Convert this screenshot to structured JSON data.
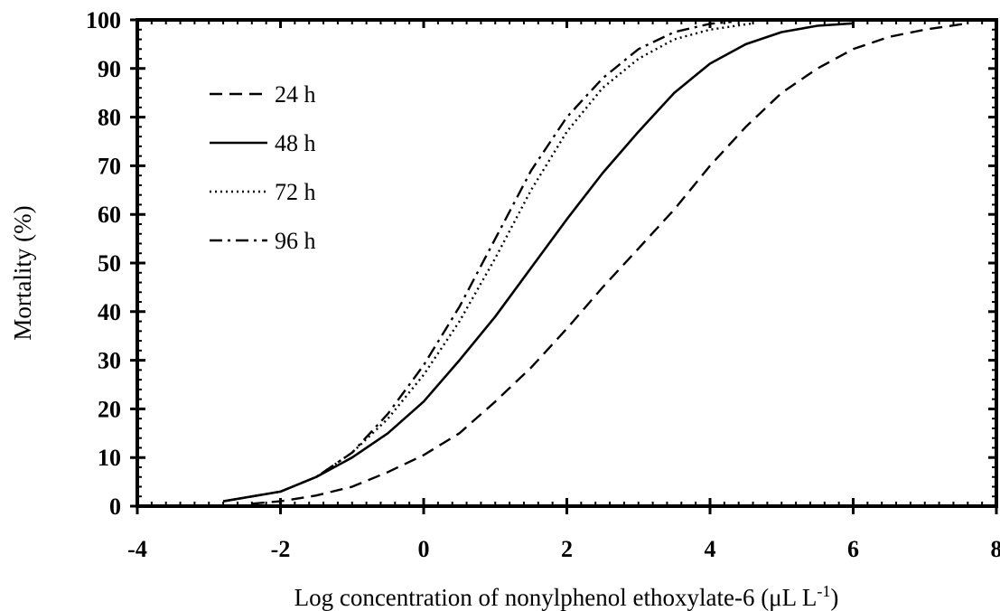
{
  "chart_data": {
    "type": "line",
    "title": "",
    "xlabel": "Log concentration of nonylphenol ethoxylate-6 (μL L",
    "xlabel_superscript": "-1",
    "xlabel_suffix": ")",
    "ylabel": "Mortality (%)",
    "xlim": [
      -4,
      8
    ],
    "ylim": [
      0,
      100
    ],
    "x_ticks": [
      "-4",
      "-2",
      "0",
      "2",
      "4",
      "6",
      "8"
    ],
    "y_ticks": [
      "0",
      "10",
      "20",
      "30",
      "40",
      "50",
      "60",
      "70",
      "80",
      "90",
      "100"
    ],
    "grid": false,
    "legend_position": "top-left",
    "series": [
      {
        "name": "24 h",
        "dash": "dashed",
        "color": "#000000",
        "points": [
          [
            -2.4,
            0.5
          ],
          [
            -2,
            1
          ],
          [
            -1.5,
            2.2
          ],
          [
            -1,
            4
          ],
          [
            -0.5,
            7
          ],
          [
            0,
            10.5
          ],
          [
            0.5,
            15
          ],
          [
            1,
            21.5
          ],
          [
            1.5,
            28.5
          ],
          [
            2,
            36.5
          ],
          [
            2.5,
            45
          ],
          [
            3,
            53
          ],
          [
            3.5,
            61
          ],
          [
            4,
            70
          ],
          [
            4.5,
            78
          ],
          [
            5,
            85
          ],
          [
            5.5,
            90
          ],
          [
            6,
            94
          ],
          [
            6.5,
            96.5
          ],
          [
            7,
            98
          ],
          [
            7.6,
            99.3
          ]
        ]
      },
      {
        "name": "48 h",
        "dash": "solid",
        "color": "#000000",
        "points": [
          [
            -2.8,
            1
          ],
          [
            -2,
            3
          ],
          [
            -1.5,
            6
          ],
          [
            -1,
            10
          ],
          [
            -0.5,
            15
          ],
          [
            0,
            21.5
          ],
          [
            0.5,
            30
          ],
          [
            1,
            39
          ],
          [
            1.5,
            49
          ],
          [
            2,
            59
          ],
          [
            2.5,
            68.5
          ],
          [
            3,
            77
          ],
          [
            3.5,
            85
          ],
          [
            4,
            91
          ],
          [
            4.5,
            95
          ],
          [
            5,
            97.5
          ],
          [
            5.5,
            98.8
          ],
          [
            6,
            99.3
          ]
        ]
      },
      {
        "name": "72 h",
        "dash": "dotted",
        "color": "#000000",
        "points": [
          [
            -2.8,
            1
          ],
          [
            -2,
            3
          ],
          [
            -1.5,
            6
          ],
          [
            -1,
            11
          ],
          [
            -0.5,
            18
          ],
          [
            0,
            27
          ],
          [
            0.5,
            38
          ],
          [
            1,
            51
          ],
          [
            1.5,
            65
          ],
          [
            2,
            77
          ],
          [
            2.5,
            86
          ],
          [
            3,
            92
          ],
          [
            3.5,
            96
          ],
          [
            4,
            98
          ],
          [
            4.6,
            99.3
          ]
        ]
      },
      {
        "name": "96 h",
        "dash": "dashdot",
        "color": "#000000",
        "points": [
          [
            -2.8,
            1
          ],
          [
            -2,
            3
          ],
          [
            -1.5,
            6
          ],
          [
            -1,
            11
          ],
          [
            -0.5,
            19
          ],
          [
            0,
            29
          ],
          [
            0.5,
            41
          ],
          [
            1,
            55
          ],
          [
            1.5,
            69
          ],
          [
            2,
            80
          ],
          [
            2.5,
            88
          ],
          [
            3,
            94
          ],
          [
            3.5,
            97.5
          ],
          [
            4,
            99.2
          ],
          [
            4.3,
            99.6
          ]
        ]
      }
    ]
  }
}
